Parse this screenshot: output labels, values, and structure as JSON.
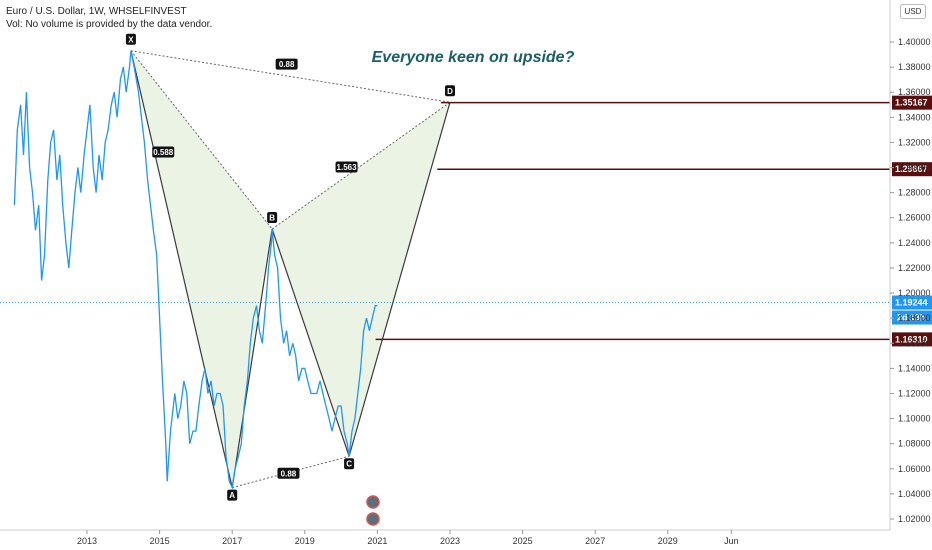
{
  "header": {
    "symbol_line": "Euro / U.S. Dollar, 1W, WHSELFINVEST",
    "volume_note": "Vol: No volume is provided by the data vendor."
  },
  "currency_label": "USD",
  "chart_data": {
    "type": "line",
    "title": "Everyone keen on upside?",
    "y_ticks": [
      "1.02000",
      "1.04000",
      "1.06000",
      "1.08000",
      "1.10000",
      "1.12000",
      "1.14000",
      "1.16000",
      "1.18000",
      "1.20000",
      "1.22000",
      "1.24000",
      "1.26000",
      "1.28000",
      "1.30000",
      "1.32000",
      "1.34000",
      "1.36000",
      "1.38000",
      "1.40000"
    ],
    "x_ticks": [
      "2013",
      "2015",
      "2017",
      "2019",
      "2021",
      "2023",
      "2025",
      "2027",
      "2029",
      "Jun"
    ],
    "ylim": [
      1.01,
      1.42
    ],
    "x_range": [
      2011.0,
      2032.6
    ],
    "series": [
      {
        "points": [
          [
            2011.0,
            1.27
          ],
          [
            2011.08,
            1.33
          ],
          [
            2011.17,
            1.35
          ],
          [
            2011.25,
            1.31
          ],
          [
            2011.33,
            1.36
          ],
          [
            2011.42,
            1.3
          ],
          [
            2011.5,
            1.28
          ],
          [
            2011.58,
            1.25
          ],
          [
            2011.67,
            1.27
          ],
          [
            2011.75,
            1.21
          ],
          [
            2011.83,
            1.23
          ],
          [
            2011.92,
            1.29
          ],
          [
            2012.0,
            1.32
          ],
          [
            2012.08,
            1.33
          ],
          [
            2012.17,
            1.29
          ],
          [
            2012.25,
            1.31
          ],
          [
            2012.33,
            1.27
          ],
          [
            2012.42,
            1.24
          ],
          [
            2012.5,
            1.22
          ],
          [
            2012.58,
            1.25
          ],
          [
            2012.67,
            1.28
          ],
          [
            2012.75,
            1.3
          ],
          [
            2012.83,
            1.28
          ],
          [
            2012.92,
            1.31
          ],
          [
            2013.0,
            1.33
          ],
          [
            2013.08,
            1.35
          ],
          [
            2013.17,
            1.3
          ],
          [
            2013.25,
            1.28
          ],
          [
            2013.33,
            1.31
          ],
          [
            2013.42,
            1.29
          ],
          [
            2013.5,
            1.32
          ],
          [
            2013.58,
            1.33
          ],
          [
            2013.67,
            1.35
          ],
          [
            2013.75,
            1.36
          ],
          [
            2013.83,
            1.34
          ],
          [
            2013.92,
            1.37
          ],
          [
            2014.0,
            1.38
          ],
          [
            2014.08,
            1.36
          ],
          [
            2014.17,
            1.38
          ],
          [
            2014.21,
            1.393
          ],
          [
            2014.3,
            1.38
          ],
          [
            2014.42,
            1.36
          ],
          [
            2014.5,
            1.34
          ],
          [
            2014.58,
            1.32
          ],
          [
            2014.67,
            1.29
          ],
          [
            2014.75,
            1.27
          ],
          [
            2014.83,
            1.25
          ],
          [
            2014.92,
            1.23
          ],
          [
            2015.0,
            1.18
          ],
          [
            2015.08,
            1.13
          ],
          [
            2015.17,
            1.08
          ],
          [
            2015.21,
            1.05
          ],
          [
            2015.3,
            1.09
          ],
          [
            2015.42,
            1.12
          ],
          [
            2015.5,
            1.1
          ],
          [
            2015.58,
            1.11
          ],
          [
            2015.67,
            1.13
          ],
          [
            2015.75,
            1.12
          ],
          [
            2015.83,
            1.08
          ],
          [
            2015.92,
            1.09
          ],
          [
            2016.0,
            1.09
          ],
          [
            2016.08,
            1.11
          ],
          [
            2016.17,
            1.13
          ],
          [
            2016.25,
            1.14
          ],
          [
            2016.33,
            1.12
          ],
          [
            2016.42,
            1.13
          ],
          [
            2016.5,
            1.11
          ],
          [
            2016.58,
            1.12
          ],
          [
            2016.67,
            1.12
          ],
          [
            2016.75,
            1.11
          ],
          [
            2016.83,
            1.07
          ],
          [
            2016.92,
            1.05
          ],
          [
            2017.0,
            1.045
          ],
          [
            2017.08,
            1.06
          ],
          [
            2017.17,
            1.07
          ],
          [
            2017.25,
            1.08
          ],
          [
            2017.33,
            1.11
          ],
          [
            2017.42,
            1.13
          ],
          [
            2017.5,
            1.16
          ],
          [
            2017.58,
            1.18
          ],
          [
            2017.67,
            1.19
          ],
          [
            2017.75,
            1.17
          ],
          [
            2017.83,
            1.16
          ],
          [
            2017.92,
            1.19
          ],
          [
            2018.0,
            1.22
          ],
          [
            2018.08,
            1.24
          ],
          [
            2018.1,
            1.251
          ],
          [
            2018.17,
            1.23
          ],
          [
            2018.25,
            1.22
          ],
          [
            2018.33,
            1.18
          ],
          [
            2018.42,
            1.16
          ],
          [
            2018.5,
            1.17
          ],
          [
            2018.58,
            1.15
          ],
          [
            2018.67,
            1.16
          ],
          [
            2018.75,
            1.15
          ],
          [
            2018.83,
            1.13
          ],
          [
            2018.92,
            1.14
          ],
          [
            2019.0,
            1.14
          ],
          [
            2019.08,
            1.13
          ],
          [
            2019.17,
            1.12
          ],
          [
            2019.25,
            1.12
          ],
          [
            2019.33,
            1.12
          ],
          [
            2019.42,
            1.13
          ],
          [
            2019.5,
            1.12
          ],
          [
            2019.58,
            1.11
          ],
          [
            2019.67,
            1.1
          ],
          [
            2019.75,
            1.09
          ],
          [
            2019.83,
            1.1
          ],
          [
            2019.92,
            1.11
          ],
          [
            2020.0,
            1.11
          ],
          [
            2020.08,
            1.09
          ],
          [
            2020.17,
            1.08
          ],
          [
            2020.22,
            1.07
          ],
          [
            2020.3,
            1.09
          ],
          [
            2020.38,
            1.1
          ],
          [
            2020.46,
            1.12
          ],
          [
            2020.54,
            1.14
          ],
          [
            2020.62,
            1.17
          ],
          [
            2020.7,
            1.18
          ],
          [
            2020.78,
            1.17
          ],
          [
            2020.86,
            1.18
          ],
          [
            2020.94,
            1.19
          ],
          [
            2021.0,
            1.19
          ]
        ]
      }
    ],
    "pattern_points": [
      {
        "label": "X",
        "x": 2014.21,
        "y": 1.393
      },
      {
        "label": "A",
        "x": 2017.0,
        "y": 1.045
      },
      {
        "label": "B",
        "x": 2018.1,
        "y": 1.251
      },
      {
        "label": "C",
        "x": 2020.22,
        "y": 1.07
      },
      {
        "label": "D",
        "x": 2023.0,
        "y": 1.352
      }
    ],
    "ratios": [
      {
        "text": "0.588",
        "x": 2015.1,
        "y": 1.312
      },
      {
        "text": "0.88",
        "x": 2018.55,
        "y": 1.056
      },
      {
        "text": "1.563",
        "x": 2020.15,
        "y": 1.3
      },
      {
        "text": "0.88",
        "x": 2018.5,
        "y": 1.382
      }
    ],
    "levels": [
      {
        "value": 1.35167,
        "label": "1.35167",
        "x_start": 2022.75,
        "color": "#5a0f0f"
      },
      {
        "value": 1.29867,
        "label": "1.29867",
        "x_start": 2022.65,
        "color": "#5a0f0f"
      },
      {
        "value": 1.1631,
        "label": "1.16310",
        "x_start": 2020.95,
        "color": "#5a0f0f"
      }
    ],
    "current_price": {
      "value": 1.19244,
      "label": "1.19244",
      "countdown": "2d 13h",
      "color": "#2196f3"
    },
    "colors": {
      "line": "#2196f3",
      "pattern_fill": "#e8f2df",
      "pattern_stroke": "#3a3a3a",
      "axis": "#cccccc",
      "title": "#1b5e6b"
    }
  }
}
